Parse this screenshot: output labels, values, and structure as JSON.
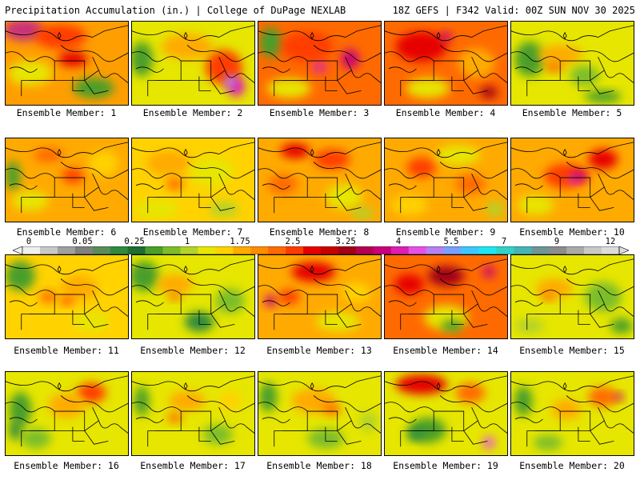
{
  "header": {
    "title": "Precipitation Accumulation (in.) | College of DuPage NEXLAB",
    "run_info": "18Z GEFS | F342 Valid: 00Z SUN NOV 30 2025"
  },
  "legend": {
    "labels": [
      "0",
      "0.05",
      "0.25",
      "1",
      "1.75",
      "2.5",
      "3.25",
      "4",
      "5.5",
      "7",
      "9",
      "12"
    ],
    "colors": [
      "#f0f0f0",
      "#c8c8c8",
      "#a0a0a0",
      "#808080",
      "#5a8c5a",
      "#2e8b3e",
      "#1e6e32",
      "#4a9e2a",
      "#7cbd2a",
      "#b4d22a",
      "#e6e600",
      "#ffd200",
      "#ffaa00",
      "#ff8c00",
      "#ff6a00",
      "#ff3c00",
      "#e60000",
      "#c80000",
      "#a00014",
      "#b40050",
      "#c8007a",
      "#dc1eb4",
      "#e650e6",
      "#b482f0",
      "#78a0ff",
      "#3cc8ff",
      "#1ee6f0",
      "#32d2c8",
      "#46b4b4",
      "#6e9696",
      "#8c8c8c",
      "#aaaaaa",
      "#c8c8c8",
      "#dcdcdc"
    ]
  },
  "members": [
    {
      "label": "Ensemble Member: 1",
      "base": "#ff9e00",
      "blobs": [
        [
          "#c8327a",
          0.15,
          0.1,
          0.28,
          0.22
        ],
        [
          "#ff3c00",
          0.45,
          0.18,
          0.35,
          0.25
        ],
        [
          "#e6e600",
          0.2,
          0.62,
          0.3,
          0.25
        ],
        [
          "#4a9e2a",
          0.72,
          0.8,
          0.28,
          0.2
        ],
        [
          "#e60000",
          0.55,
          0.45,
          0.2,
          0.15
        ]
      ]
    },
    {
      "label": "Ensemble Member: 2",
      "base": "#e6e600",
      "blobs": [
        [
          "#4a9e2a",
          0.08,
          0.45,
          0.15,
          0.35
        ],
        [
          "#ffaa00",
          0.45,
          0.3,
          0.35,
          0.25
        ],
        [
          "#ff3c00",
          0.75,
          0.55,
          0.25,
          0.35
        ],
        [
          "#dc1eb4",
          0.85,
          0.78,
          0.12,
          0.2
        ],
        [
          "#b482f0",
          0.8,
          0.72,
          0.07,
          0.14
        ]
      ]
    },
    {
      "label": "Ensemble Member: 3",
      "base": "#ff6a00",
      "blobs": [
        [
          "#4a9e2a",
          0.1,
          0.25,
          0.15,
          0.3
        ],
        [
          "#ff3c00",
          0.4,
          0.3,
          0.35,
          0.3
        ],
        [
          "#dc1eb4",
          0.5,
          0.55,
          0.1,
          0.1
        ],
        [
          "#c8007a",
          0.75,
          0.45,
          0.12,
          0.2
        ],
        [
          "#e6e600",
          0.25,
          0.8,
          0.3,
          0.2
        ]
      ]
    },
    {
      "label": "Ensemble Member: 4",
      "base": "#ff6a00",
      "blobs": [
        [
          "#e60000",
          0.3,
          0.3,
          0.35,
          0.3
        ],
        [
          "#c8007a",
          0.5,
          0.18,
          0.08,
          0.1
        ],
        [
          "#ffaa00",
          0.75,
          0.5,
          0.25,
          0.3
        ],
        [
          "#e6e600",
          0.35,
          0.8,
          0.3,
          0.2
        ],
        [
          "#a00014",
          0.85,
          0.85,
          0.12,
          0.12
        ]
      ]
    },
    {
      "label": "Ensemble Member: 5",
      "base": "#e6e600",
      "blobs": [
        [
          "#4a9e2a",
          0.15,
          0.45,
          0.2,
          0.35
        ],
        [
          "#ffaa00",
          0.4,
          0.4,
          0.3,
          0.2
        ],
        [
          "#7cbd2a",
          0.6,
          0.65,
          0.2,
          0.2
        ],
        [
          "#ff6a00",
          0.35,
          0.55,
          0.12,
          0.1
        ],
        [
          "#4a9e2a",
          0.75,
          0.9,
          0.25,
          0.12
        ]
      ]
    },
    {
      "label": "Ensemble Member: 6",
      "base": "#ffaa00",
      "blobs": [
        [
          "#ff6a00",
          0.35,
          0.2,
          0.2,
          0.15
        ],
        [
          "#4a9e2a",
          0.06,
          0.45,
          0.1,
          0.3
        ],
        [
          "#ff3c00",
          0.55,
          0.45,
          0.15,
          0.15
        ],
        [
          "#e6e600",
          0.2,
          0.75,
          0.25,
          0.2
        ],
        [
          "#ffd200",
          0.8,
          0.3,
          0.2,
          0.25
        ]
      ]
    },
    {
      "label": "Ensemble Member: 7",
      "base": "#ffd200",
      "blobs": [
        [
          "#ffaa00",
          0.3,
          0.3,
          0.3,
          0.25
        ],
        [
          "#e6e600",
          0.65,
          0.4,
          0.3,
          0.3
        ],
        [
          "#ff6a00",
          0.35,
          0.55,
          0.12,
          0.12
        ],
        [
          "#e6e600",
          0.2,
          0.85,
          0.3,
          0.2
        ],
        [
          "#b4d22a",
          0.75,
          0.85,
          0.2,
          0.15
        ]
      ]
    },
    {
      "label": "Ensemble Member: 8",
      "base": "#ffaa00",
      "blobs": [
        [
          "#e60000",
          0.3,
          0.15,
          0.2,
          0.15
        ],
        [
          "#ff3c00",
          0.6,
          0.25,
          0.25,
          0.2
        ],
        [
          "#ff6a00",
          0.2,
          0.55,
          0.2,
          0.2
        ],
        [
          "#e6e600",
          0.7,
          0.7,
          0.25,
          0.25
        ],
        [
          "#b4d22a",
          0.85,
          0.9,
          0.15,
          0.12
        ]
      ]
    },
    {
      "label": "Ensemble Member: 9",
      "base": "#ffaa00",
      "blobs": [
        [
          "#ff3c00",
          0.3,
          0.35,
          0.2,
          0.2
        ],
        [
          "#e6e600",
          0.6,
          0.2,
          0.3,
          0.2
        ],
        [
          "#ff6a00",
          0.7,
          0.55,
          0.2,
          0.2
        ],
        [
          "#ffd200",
          0.2,
          0.8,
          0.25,
          0.2
        ],
        [
          "#b4d22a",
          0.9,
          0.85,
          0.12,
          0.15
        ]
      ]
    },
    {
      "label": "Ensemble Member: 10",
      "base": "#ffaa00",
      "blobs": [
        [
          "#ff3c00",
          0.45,
          0.45,
          0.3,
          0.25
        ],
        [
          "#e650e6",
          0.52,
          0.5,
          0.08,
          0.08
        ],
        [
          "#c8007a",
          0.55,
          0.45,
          0.12,
          0.1
        ],
        [
          "#e60000",
          0.75,
          0.25,
          0.2,
          0.2
        ],
        [
          "#e6e600",
          0.2,
          0.8,
          0.25,
          0.2
        ]
      ]
    },
    {
      "label": "Ensemble Member: 11",
      "base": "#ffd200",
      "blobs": [
        [
          "#4a9e2a",
          0.12,
          0.25,
          0.2,
          0.3
        ],
        [
          "#ff6a00",
          0.35,
          0.5,
          0.12,
          0.12
        ],
        [
          "#ffaa00",
          0.6,
          0.4,
          0.25,
          0.25
        ],
        [
          "#e6e600",
          0.7,
          0.8,
          0.25,
          0.2
        ],
        [
          "#ff3c00",
          0.5,
          0.55,
          0.08,
          0.08
        ]
      ]
    },
    {
      "label": "Ensemble Member: 12",
      "base": "#e6e600",
      "blobs": [
        [
          "#4a9e2a",
          0.1,
          0.25,
          0.2,
          0.3
        ],
        [
          "#2e8b3e",
          0.55,
          0.8,
          0.2,
          0.2
        ],
        [
          "#ffaa00",
          0.35,
          0.35,
          0.25,
          0.2
        ],
        [
          "#ff6a00",
          0.35,
          0.5,
          0.08,
          0.08
        ],
        [
          "#7cbd2a",
          0.8,
          0.55,
          0.2,
          0.25
        ]
      ]
    },
    {
      "label": "Ensemble Member: 13",
      "base": "#ffaa00",
      "blobs": [
        [
          "#e60000",
          0.45,
          0.2,
          0.3,
          0.2
        ],
        [
          "#c8007a",
          0.1,
          0.55,
          0.08,
          0.12
        ],
        [
          "#ff3c00",
          0.25,
          0.5,
          0.15,
          0.15
        ],
        [
          "#e6e600",
          0.65,
          0.8,
          0.3,
          0.2
        ],
        [
          "#ffd200",
          0.8,
          0.45,
          0.2,
          0.2
        ]
      ]
    },
    {
      "label": "Ensemble Member: 14",
      "base": "#ff6a00",
      "blobs": [
        [
          "#a00014",
          0.5,
          0.25,
          0.25,
          0.2
        ],
        [
          "#c8007a",
          0.85,
          0.2,
          0.08,
          0.12
        ],
        [
          "#e6e600",
          0.5,
          0.75,
          0.3,
          0.25
        ],
        [
          "#4a9e2a",
          0.55,
          0.85,
          0.15,
          0.12
        ],
        [
          "#e60000",
          0.2,
          0.35,
          0.2,
          0.2
        ]
      ]
    },
    {
      "label": "Ensemble Member: 15",
      "base": "#e6e600",
      "blobs": [
        [
          "#ffaa00",
          0.35,
          0.4,
          0.25,
          0.2
        ],
        [
          "#7cbd2a",
          0.75,
          0.5,
          0.25,
          0.3
        ],
        [
          "#4a9e2a",
          0.9,
          0.85,
          0.15,
          0.15
        ],
        [
          "#ff6a00",
          0.3,
          0.5,
          0.08,
          0.08
        ],
        [
          "#b4d22a",
          0.15,
          0.85,
          0.2,
          0.15
        ]
      ]
    },
    {
      "label": "Ensemble Member: 16",
      "base": "#e6e600",
      "blobs": [
        [
          "#4a9e2a",
          0.12,
          0.45,
          0.15,
          0.35
        ],
        [
          "#ff3c00",
          0.7,
          0.25,
          0.2,
          0.2
        ],
        [
          "#ffaa00",
          0.5,
          0.4,
          0.25,
          0.25
        ],
        [
          "#7cbd2a",
          0.25,
          0.8,
          0.2,
          0.2
        ],
        [
          "#2e8b3e",
          0.08,
          0.7,
          0.08,
          0.2
        ]
      ]
    },
    {
      "label": "Ensemble Member: 17",
      "base": "#e6e600",
      "blobs": [
        [
          "#4a9e2a",
          0.08,
          0.35,
          0.1,
          0.3
        ],
        [
          "#ffaa00",
          0.45,
          0.35,
          0.25,
          0.2
        ],
        [
          "#ff6a00",
          0.35,
          0.55,
          0.1,
          0.1
        ],
        [
          "#7cbd2a",
          0.7,
          0.75,
          0.2,
          0.2
        ],
        [
          "#ffd200",
          0.8,
          0.35,
          0.15,
          0.2
        ]
      ]
    },
    {
      "label": "Ensemble Member: 18",
      "base": "#e6e600",
      "blobs": [
        [
          "#4a9e2a",
          0.08,
          0.3,
          0.12,
          0.3
        ],
        [
          "#ffaa00",
          0.45,
          0.35,
          0.3,
          0.25
        ],
        [
          "#ff6a00",
          0.6,
          0.45,
          0.12,
          0.12
        ],
        [
          "#7cbd2a",
          0.55,
          0.8,
          0.25,
          0.2
        ],
        [
          "#b4d22a",
          0.9,
          0.6,
          0.12,
          0.2
        ]
      ]
    },
    {
      "label": "Ensemble Member: 19",
      "base": "#e6e600",
      "blobs": [
        [
          "#e60000",
          0.3,
          0.15,
          0.35,
          0.2
        ],
        [
          "#ff6a00",
          0.7,
          0.25,
          0.2,
          0.2
        ],
        [
          "#4a9e2a",
          0.35,
          0.7,
          0.25,
          0.25
        ],
        [
          "#2e8b3e",
          0.25,
          0.75,
          0.12,
          0.12
        ],
        [
          "#e650e6",
          0.85,
          0.85,
          0.08,
          0.12
        ]
      ]
    },
    {
      "label": "Ensemble Member: 20",
      "base": "#e6e600",
      "blobs": [
        [
          "#4a9e2a",
          0.1,
          0.35,
          0.12,
          0.3
        ],
        [
          "#ff6a00",
          0.75,
          0.3,
          0.2,
          0.2
        ],
        [
          "#c8007a",
          0.88,
          0.3,
          0.06,
          0.08
        ],
        [
          "#ffaa00",
          0.45,
          0.45,
          0.2,
          0.2
        ],
        [
          "#7cbd2a",
          0.3,
          0.85,
          0.2,
          0.15
        ]
      ]
    }
  ]
}
